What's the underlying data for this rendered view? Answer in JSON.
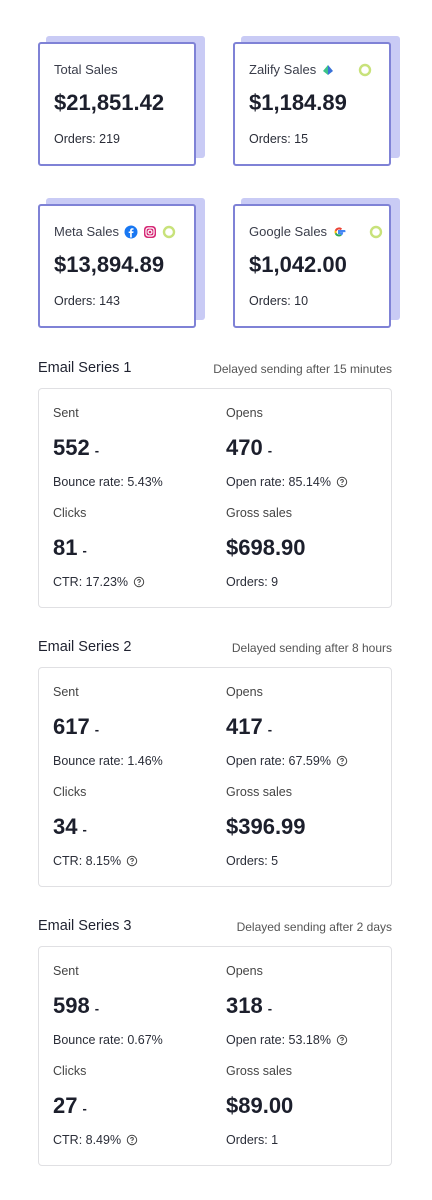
{
  "cards": [
    {
      "title": "Total Sales",
      "amount": "$21,851.42",
      "orders": "Orders: 219"
    },
    {
      "title": "Zalify Sales",
      "amount": "$1,184.89",
      "orders": "Orders: 15"
    },
    {
      "title": "Meta Sales",
      "amount": "$13,894.89",
      "orders": "Orders: 143"
    },
    {
      "title": "Google Sales",
      "amount": "$1,042.00",
      "orders": "Orders: 10"
    }
  ],
  "series": [
    {
      "title": "Email Series 1",
      "delay": "Delayed sending after 15 minutes",
      "metrics": [
        {
          "label": "Sent",
          "value": "552",
          "change": "-",
          "detail": "Bounce rate: 5.43%"
        },
        {
          "label": "Opens",
          "value": "470",
          "change": "-",
          "detail": "Open rate: 85.14%",
          "help": true
        },
        {
          "label": "Clicks",
          "value": "81",
          "change": "-",
          "detail": "CTR: 17.23%",
          "help": true
        },
        {
          "label": "Gross sales",
          "value": "$698.90",
          "detail": "Orders: 9"
        }
      ]
    },
    {
      "title": "Email Series 2",
      "delay": "Delayed sending after 8 hours",
      "metrics": [
        {
          "label": "Sent",
          "value": "617",
          "change": "-",
          "detail": "Bounce rate: 1.46%"
        },
        {
          "label": "Opens",
          "value": "417",
          "change": "-",
          "detail": "Open rate: 67.59%",
          "help": true
        },
        {
          "label": "Clicks",
          "value": "34",
          "change": "-",
          "detail": "CTR: 8.15%",
          "help": true
        },
        {
          "label": "Gross sales",
          "value": "$396.99",
          "detail": "Orders: 5"
        }
      ]
    },
    {
      "title": "Email Series 3",
      "delay": "Delayed sending after 2 days",
      "metrics": [
        {
          "label": "Sent",
          "value": "598",
          "change": "-",
          "detail": "Bounce rate: 0.67%"
        },
        {
          "label": "Opens",
          "value": "318",
          "change": "-",
          "detail": "Open rate: 53.18%",
          "help": true
        },
        {
          "label": "Clicks",
          "value": "27",
          "change": "-",
          "detail": "CTR: 8.49%",
          "help": true
        },
        {
          "label": "Gross sales",
          "value": "$89.00",
          "detail": "Orders: 1"
        }
      ]
    }
  ]
}
